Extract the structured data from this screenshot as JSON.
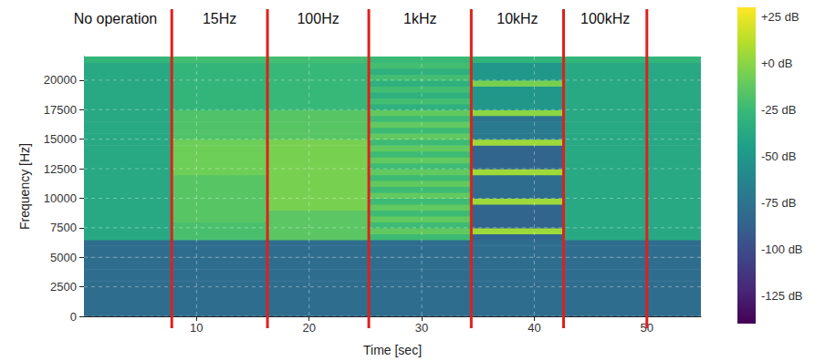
{
  "chart_data": {
    "type": "heatmap",
    "xlabel": "Time [sec]",
    "ylabel": "Frequency [Hz]",
    "xlim": [
      0,
      54.8
    ],
    "ylim": [
      0,
      22000
    ],
    "xticks": [
      10,
      20,
      30,
      40,
      50
    ],
    "yticks": [
      0,
      2500,
      5000,
      7500,
      10000,
      12500,
      15000,
      17500,
      20000
    ],
    "grid": true,
    "x_bins": [
      0,
      7.8,
      16.3,
      25.3,
      34.4,
      42.6,
      50,
      54.8
    ],
    "y_bins": [
      0,
      500,
      1000,
      1500,
      2000,
      2500,
      3000,
      3500,
      4000,
      4500,
      5000,
      5500,
      6000,
      6500,
      7000,
      7500,
      8000,
      8500,
      9000,
      9500,
      10000,
      10500,
      11000,
      11500,
      12000,
      12500,
      13000,
      13500,
      14000,
      14500,
      15000,
      15500,
      16000,
      16500,
      17000,
      17500,
      18000,
      18500,
      19000,
      19500,
      20000,
      20500,
      21000,
      21500,
      22000
    ],
    "cells": [
      [
        -80,
        -80,
        -80,
        -80,
        -80,
        -80,
        -80
      ],
      [
        -80,
        -80,
        -80,
        -80,
        -80,
        -80,
        -80
      ],
      [
        -80,
        -80,
        -80,
        -80,
        -80,
        -80,
        -80
      ],
      [
        -80,
        -80,
        -80,
        -80,
        -80,
        -80,
        -80
      ],
      [
        -80,
        -80,
        -80,
        -80,
        -80,
        -80,
        -80
      ],
      [
        -80,
        -80,
        -80,
        -80,
        -80,
        -80,
        -80
      ],
      [
        -80,
        -80,
        -80,
        -80,
        -80,
        -80,
        -80
      ],
      [
        -80,
        -80,
        -80,
        -80,
        -80,
        -80,
        -80
      ],
      [
        -80,
        -80,
        -80,
        -80,
        -80,
        -80,
        -80
      ],
      [
        -80,
        -80,
        -80,
        -80,
        -80,
        -80,
        -80
      ],
      [
        -80,
        -80,
        -80,
        -80,
        -80,
        -80,
        -80
      ],
      [
        -80,
        -80,
        -80,
        -80,
        -80,
        -80,
        -80
      ],
      [
        -80,
        -80,
        -80,
        -80,
        -80,
        -80,
        -80
      ],
      [
        -38,
        -20,
        -14,
        -24,
        -85,
        -38,
        -38
      ],
      [
        -38,
        -20,
        -14,
        -12,
        5,
        -38,
        -38
      ],
      [
        -38,
        -20,
        -14,
        -24,
        -85,
        -38,
        -38
      ],
      [
        -38,
        -15,
        -14,
        -12,
        -85,
        -38,
        -38
      ],
      [
        -38,
        -15,
        -14,
        -24,
        -85,
        -38,
        -38
      ],
      [
        -38,
        -15,
        -5,
        -12,
        -85,
        -38,
        -38
      ],
      [
        -38,
        -15,
        -5,
        -24,
        5,
        -38,
        -38
      ],
      [
        -38,
        -15,
        -5,
        -12,
        -80,
        -38,
        -38
      ],
      [
        -38,
        -15,
        -5,
        -24,
        -80,
        -38,
        -38
      ],
      [
        -38,
        -15,
        -5,
        -12,
        -80,
        -38,
        -38
      ],
      [
        -38,
        -15,
        -5,
        -24,
        -80,
        -38,
        -38
      ],
      [
        -38,
        -8,
        -5,
        -12,
        5,
        -38,
        -38
      ],
      [
        -38,
        -8,
        -5,
        -24,
        -85,
        -38,
        -38
      ],
      [
        -38,
        -8,
        -5,
        -12,
        -85,
        -38,
        -38
      ],
      [
        -38,
        -8,
        -5,
        -24,
        -85,
        -38,
        -38
      ],
      [
        -38,
        -8,
        -5,
        -12,
        -85,
        -38,
        -38
      ],
      [
        -38,
        -8,
        -5,
        -24,
        5,
        -38,
        -38
      ],
      [
        -38,
        -18,
        -15,
        -12,
        -70,
        -38,
        -38
      ],
      [
        -38,
        -18,
        -15,
        -24,
        -70,
        -38,
        -38
      ],
      [
        -38,
        -18,
        -15,
        -12,
        -70,
        -38,
        -38
      ],
      [
        -38,
        -18,
        -15,
        -24,
        -75,
        -38,
        -38
      ],
      [
        -38,
        -18,
        -15,
        -12,
        0,
        -38,
        -38
      ],
      [
        -38,
        -28,
        -26,
        -32,
        -50,
        -38,
        -38
      ],
      [
        -38,
        -28,
        -26,
        -22,
        -50,
        -38,
        -38
      ],
      [
        -38,
        -28,
        -26,
        -32,
        -50,
        -38,
        -38
      ],
      [
        -38,
        -28,
        -26,
        -22,
        -50,
        -38,
        -38
      ],
      [
        -38,
        -28,
        -26,
        -32,
        -5,
        -38,
        -38
      ],
      [
        -38,
        -28,
        -26,
        -22,
        -50,
        -38,
        -38
      ],
      [
        -38,
        -28,
        -26,
        -32,
        -50,
        -38,
        -38
      ],
      [
        -38,
        -28,
        -26,
        -22,
        -50,
        -38,
        -38
      ],
      [
        -28,
        -22,
        -22,
        -25,
        -30,
        -28,
        -28
      ]
    ],
    "colorbar_range": [
      -140,
      30
    ],
    "colorbar_ticks": [
      {
        "value": 25,
        "label": "+25 dB"
      },
      {
        "value": 0,
        "label": "+0 dB"
      },
      {
        "value": -25,
        "label": "-25 dB"
      },
      {
        "value": -50,
        "label": "-50 dB"
      },
      {
        "value": -75,
        "label": "-75 dB"
      },
      {
        "value": -100,
        "label": "-100 dB"
      },
      {
        "value": -125,
        "label": "-125 dB"
      }
    ],
    "segment_boundaries": [
      7.8,
      16.3,
      25.3,
      34.4,
      42.6,
      50
    ],
    "segment_labels": [
      "No operation",
      "15Hz",
      "100Hz",
      "1kHz",
      "10kHz",
      "100kHz"
    ]
  }
}
